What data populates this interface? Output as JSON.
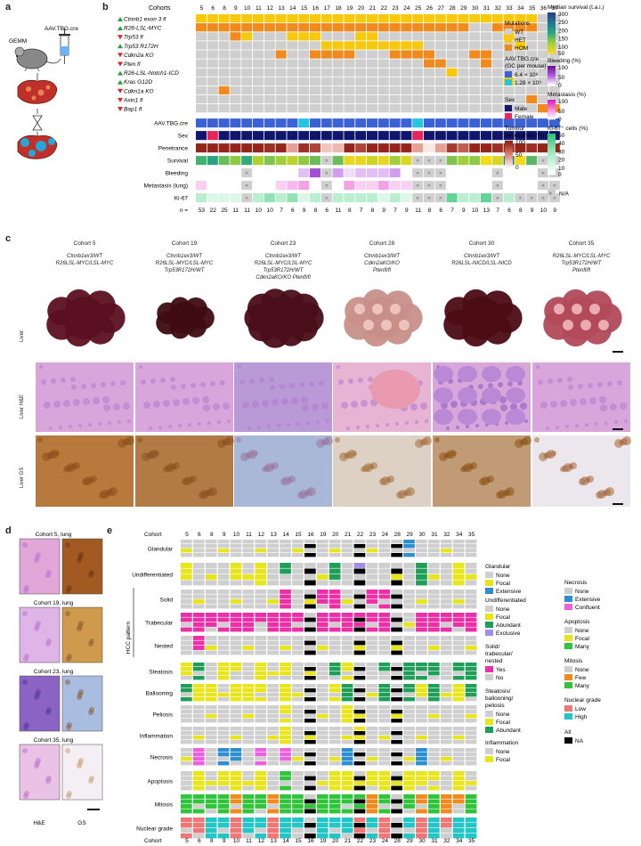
{
  "panels": {
    "a": "a",
    "b": "b",
    "c": "c",
    "d": "d",
    "e": "e"
  },
  "panel_a": {
    "gemm_label": "GEMM",
    "virus_label": "AAV.TBG.cre"
  },
  "panel_b": {
    "cohorts_label": "Cohorts",
    "cohorts": [
      "5",
      "6",
      "8",
      "9",
      "10",
      "11",
      "12",
      "13",
      "14",
      "15",
      "16",
      "17",
      "18",
      "19",
      "20",
      "21",
      "22",
      "23",
      "24",
      "25",
      "26",
      "27",
      "28",
      "29",
      "30",
      "31",
      "32",
      "33",
      "34",
      "35",
      "36",
      "37"
    ],
    "genes": [
      {
        "name": "Ctnnb1 exon 3 fl",
        "dir": "up"
      },
      {
        "name": "R26-LSL-MYC",
        "dir": "up"
      },
      {
        "name": "Trp53 fl",
        "dir": "down"
      },
      {
        "name": "Trp53 R172H",
        "dir": "up"
      },
      {
        "name": "Cdkn2a KO",
        "dir": "down"
      },
      {
        "name": "Pten fl",
        "dir": "down"
      },
      {
        "name": "R26-LSL-Notch1-ICD",
        "dir": "up"
      },
      {
        "name": "Kras G12D",
        "dir": "up"
      },
      {
        "name": "Cdkn1a KO",
        "dir": "down"
      },
      {
        "name": "Axin1 fl",
        "dir": "down"
      },
      {
        "name": "Bap1 fl",
        "dir": "down"
      }
    ],
    "mutation_matrix": [
      "HHHHHHHHHHHHHHHHHHHHHHHHHHHHHHWW",
      "OOOOOOOOOOOOOOOOOOOOOOOOWWOOOOWW",
      "WWWOHWWWHHHWWWHHWWWWWWWWWWWHWWWW",
      "WWWWWWWWWWWHHHHHHHHHWWWWWWWWHWWW",
      "WWWWWWWOWWOOOOWWWOOOOWWWOOWWWWWW",
      "WWWWWWWWWWWWWWWWWWWWOOWWWOWWWWWW",
      "WWWWWWWWWWWWWWWWWWWWWWHWWWWWWWWW",
      "WWWWWWWWWWWWWWWWWWWWWWWWWWWHWWWW",
      "WWOWWWWWWWWWWWWWWWWWWWWWWWWWWWWW",
      "WWWWWWWWWWWWWWWWWWWWWWWWWWWWWOWW",
      "WWWWWWWWWWWWWWWWWWWWWWWWWWWWWWOO"
    ],
    "aav_row": "AAV.TBG.cre",
    "aav_matrix": "DDDDDDDDDLDDDDDDDDDLDDDDDDDDDDDD",
    "sex_row": "Sex",
    "sex_matrix": "MFMMMMMMMMMMMMMMMMMFMMMMMMMMMMMM",
    "penetrance_row": "Penetrance",
    "penetrance": [
      95,
      95,
      95,
      95,
      95,
      95,
      90,
      95,
      40,
      90,
      80,
      25,
      30,
      95,
      80,
      95,
      95,
      95,
      95,
      40,
      10,
      40,
      85,
      70,
      95,
      95,
      90,
      95,
      95,
      90,
      95,
      95
    ],
    "survival_row": "Survival",
    "survival": [
      160,
      180,
      140,
      120,
      170,
      100,
      130,
      110,
      90,
      120,
      140,
      null,
      140,
      60,
      60,
      80,
      60,
      110,
      70,
      null,
      null,
      null,
      130,
      110,
      120,
      40,
      70,
      220,
      40,
      150,
      null,
      null
    ],
    "bleeding_row": "Bleeding",
    "bleeding": [
      0,
      0,
      0,
      0,
      null,
      0,
      0,
      0,
      0,
      20,
      60,
      null,
      30,
      10,
      20,
      20,
      20,
      30,
      0,
      null,
      null,
      null,
      0,
      0,
      0,
      0,
      null,
      0,
      0,
      0,
      null,
      null
    ],
    "metastasis_row": "Metastasis (lung)",
    "metastasis": [
      20,
      0,
      0,
      0,
      null,
      0,
      0,
      20,
      30,
      40,
      0,
      null,
      0,
      40,
      20,
      20,
      40,
      20,
      20,
      null,
      null,
      null,
      0,
      0,
      0,
      0,
      null,
      0,
      0,
      0,
      null,
      null
    ],
    "ki67_row": "Ki-67",
    "ki67": [
      20,
      10,
      10,
      10,
      null,
      20,
      30,
      20,
      30,
      10,
      20,
      null,
      20,
      20,
      20,
      20,
      10,
      20,
      10,
      null,
      null,
      null,
      40,
      20,
      20,
      40,
      null,
      20,
      null,
      null,
      null,
      null
    ],
    "n_label": "n =",
    "n_values": [
      "53",
      "22",
      "25",
      "11",
      "11",
      "10",
      "10",
      "7",
      "6",
      "9",
      "8",
      "6",
      "11",
      "8",
      "7",
      "8",
      "9",
      "7",
      "9",
      "11",
      "8",
      "6",
      "7",
      "9",
      "10",
      "13",
      "7",
      "6",
      "8",
      "9",
      "10",
      "9"
    ],
    "legend": {
      "mutations_title": "Mutations",
      "mutations": [
        {
          "label": "WT",
          "color": "#cfcfcf"
        },
        {
          "label": "HET",
          "color": "#f6c90e"
        },
        {
          "label": "HOM",
          "color": "#f08a1c"
        }
      ],
      "aav_title": "AAV.TBG.cre (GC per mouse)",
      "aav": [
        {
          "label": "6.4 × 10⁸",
          "color": "#3a62d6"
        },
        {
          "label": "1.28 × 10⁹",
          "color": "#23c6e0"
        }
      ],
      "sex_title": "Sex",
      "sex": [
        {
          "label": "Male",
          "color": "#10166e"
        },
        {
          "label": "Female",
          "color": "#e8245a"
        }
      ],
      "penetrance_title": "Tumour penetrance (%)",
      "penetrance_ticks": [
        "100",
        "50",
        "0"
      ],
      "survival_title": "Median survival (t.a.i.)",
      "survival_ticks": [
        "300",
        "250",
        "200",
        "150",
        "100",
        "50"
      ],
      "bleeding_title": "Bleeding (%)",
      "bleeding_ticks": [
        "100",
        "50",
        "0"
      ],
      "metastasis_title": "Metastasis (%)",
      "metastasis_ticks": [
        "100",
        "50",
        "0"
      ],
      "ki67_title": "Ki-67⁺ cells (%)",
      "ki67_ticks": [
        "50",
        "40",
        "30",
        "20",
        "10",
        "0"
      ],
      "na_label": "N/A"
    }
  },
  "panel_c": {
    "cohorts": [
      {
        "title": "Cohort 5",
        "geno": [
          "Ctnnb1ex3/WT",
          "R26LSL-MYC/LSL-MYC"
        ]
      },
      {
        "title": "Cohort 19",
        "geno": [
          "Ctnnb1ex3/WT",
          "R26LSL-MYC/LSL-MYC",
          "Trp53R172H/WT"
        ]
      },
      {
        "title": "Cohort 23",
        "geno": [
          "Ctnnb1ex3/WT",
          "R26LSL-MYC/LSL-MYC",
          "Trp53R172H/WT",
          "Cdkn2aKO/KO Ptenfl/fl"
        ]
      },
      {
        "title": "Cohort 28",
        "geno": [
          "Ctnnb1ex3/WT",
          "Cdkn2aKO/KO",
          "Ptenfl/fl"
        ]
      },
      {
        "title": "Cohort 30",
        "geno": [
          "Ctnnb1ex3/WT",
          "R26LSL-NICD/LSL-NICD"
        ]
      },
      {
        "title": "Cohort 35",
        "geno": [
          "R26LSL-MYC/LSL-MYC",
          "Trp53R172H/WT",
          "Ptenfl/fl"
        ]
      }
    ],
    "row_labels": [
      "Liver",
      "Liver H&E",
      "Liver GS"
    ]
  },
  "panel_d": {
    "titles": [
      "Cohort 5, lung",
      "Cohort 19, lung",
      "Cohort 23, lung",
      "Cohort 35, lung"
    ],
    "col_labels": [
      "H&E",
      "GS"
    ]
  },
  "panel_e": {
    "cohort_label": "Cohort",
    "cohorts": [
      "5",
      "6",
      "8",
      "9",
      "10",
      "11",
      "12",
      "13",
      "14",
      "15",
      "16",
      "19",
      "20",
      "21",
      "22",
      "23",
      "24",
      "28",
      "29",
      "30",
      "31",
      "32",
      "34",
      "35"
    ],
    "hcc_label": "HCC pattern",
    "features": [
      "Glandular",
      "Undifferentiated",
      "Solid",
      "Trabecular",
      "Nested",
      "Steatosis",
      "Ballooning",
      "Peliosis",
      "Inflammation",
      "Necrosis",
      "Apoptosis",
      "Mitosis",
      "Nuclear grade"
    ],
    "legend": {
      "glandular": {
        "title": "Glandular",
        "items": [
          {
            "label": "None",
            "color": "#cfcfcf"
          },
          {
            "label": "Focal",
            "color": "#e8e51a"
          },
          {
            "label": "Extensive",
            "color": "#2d8fd1"
          }
        ]
      },
      "undiff": {
        "title": "Undifferentiated",
        "items": [
          {
            "label": "None",
            "color": "#cfcfcf"
          },
          {
            "label": "Focal",
            "color": "#e8e51a"
          },
          {
            "label": "Abundant",
            "color": "#1f9e58"
          },
          {
            "label": "Exclusive",
            "color": "#9f8fe6"
          }
        ]
      },
      "solid": {
        "title": "Solid/ trabecular/ nested",
        "items": [
          {
            "label": "Yes",
            "color": "#ec2fa6"
          },
          {
            "label": "No",
            "color": "#cfcfcf"
          }
        ]
      },
      "steatosis": {
        "title": "Steatosis/ ballooning/ peliosis",
        "items": [
          {
            "label": "None",
            "color": "#cfcfcf"
          },
          {
            "label": "Focal",
            "color": "#e8e51a"
          },
          {
            "label": "Abundant",
            "color": "#1f9e58"
          }
        ]
      },
      "inflammation": {
        "title": "Inflammation",
        "items": [
          {
            "label": "None",
            "color": "#cfcfcf"
          },
          {
            "label": "Focal",
            "color": "#e8e51a"
          }
        ]
      },
      "necrosis": {
        "title": "Necrosis",
        "items": [
          {
            "label": "None",
            "color": "#cfcfcf"
          },
          {
            "label": "Extensive",
            "color": "#2d8fd1"
          },
          {
            "label": "Confluent",
            "color": "#ec5fe0"
          }
        ]
      },
      "apoptosis": {
        "title": "Apoptosis",
        "items": [
          {
            "label": "None",
            "color": "#cfcfcf"
          },
          {
            "label": "Focal",
            "color": "#e8e51a"
          },
          {
            "label": "Many",
            "color": "#2fc43a"
          }
        ]
      },
      "mitosis": {
        "title": "Mitosis",
        "items": [
          {
            "label": "None",
            "color": "#cfcfcf"
          },
          {
            "label": "Few",
            "color": "#f08a1c"
          },
          {
            "label": "Many",
            "color": "#2fc43a"
          }
        ]
      },
      "nuclear": {
        "title": "Nuclear grade",
        "items": [
          {
            "label": "Low",
            "color": "#f07575"
          },
          {
            "label": "High",
            "color": "#23c6c6"
          }
        ]
      },
      "all": {
        "title": "All",
        "items": [
          {
            "label": "NA",
            "color": "#000000"
          }
        ]
      }
    }
  }
}
